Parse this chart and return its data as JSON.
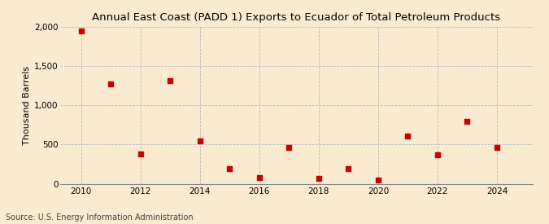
{
  "title": "Annual East Coast (PADD 1) Exports to Ecuador of Total Petroleum Products",
  "ylabel": "Thousand Barrels",
  "source": "Source: U.S. Energy Information Administration",
  "years": [
    2010,
    2011,
    2012,
    2013,
    2014,
    2015,
    2016,
    2017,
    2018,
    2019,
    2020,
    2021,
    2022,
    2023,
    2024
  ],
  "values": [
    1950,
    1270,
    375,
    1310,
    550,
    190,
    80,
    460,
    70,
    195,
    50,
    610,
    370,
    800,
    460
  ],
  "marker_color": "#cc0000",
  "marker_size": 4,
  "bg_color": "#faebd0",
  "plot_bg_color": "#faebd0",
  "grid_color": "#bbbbbb",
  "ylim": [
    0,
    2000
  ],
  "yticks": [
    0,
    500,
    1000,
    1500,
    2000
  ],
  "xlim": [
    2009.3,
    2025.2
  ],
  "xticks": [
    2010,
    2012,
    2014,
    2016,
    2018,
    2020,
    2022,
    2024
  ],
  "title_fontsize": 9.5,
  "label_fontsize": 8,
  "tick_fontsize": 7.5,
  "source_fontsize": 7
}
